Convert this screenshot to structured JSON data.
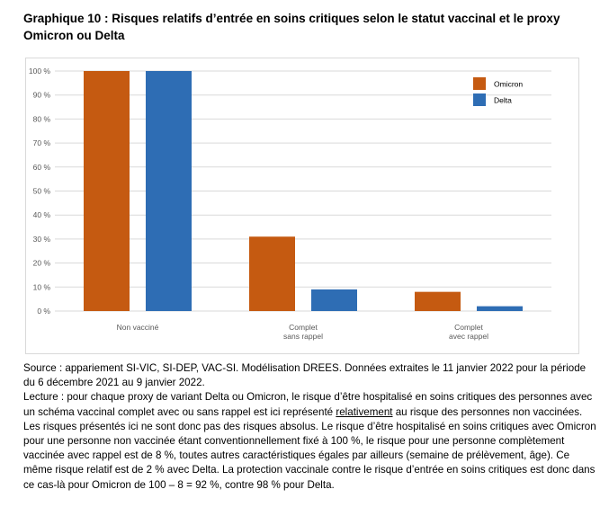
{
  "header": {
    "title": "Graphique 10 : Risques relatifs d’entrée en soins critiques selon le statut vaccinal et le proxy Omicron ou Delta"
  },
  "chart_data": {
    "type": "bar",
    "categories": [
      [
        "Non vacciné"
      ],
      [
        "Complet",
        "sans rappel"
      ],
      [
        "Complet",
        "avec rappel"
      ]
    ],
    "series": [
      {
        "name": "Omicron",
        "color": "#C55A11",
        "values": [
          100,
          31,
          8
        ]
      },
      {
        "name": "Delta",
        "color": "#2E6DB4",
        "values": [
          100,
          9,
          2
        ]
      }
    ],
    "y_ticks": [
      "0 %",
      "10 %",
      "20 %",
      "30 %",
      "40 %",
      "50 %",
      "60 %",
      "70 %",
      "80 %",
      "90 %",
      "100 %"
    ],
    "ylim": [
      0,
      100
    ],
    "grid": true,
    "legend_position": "top-right"
  },
  "notes": {
    "source": "Source : appariement SI-VIC, SI-DEP, VAC-SI. Modélisation DREES. Données extraites le 11 janvier 2022 pour la période du 6 décembre 2021 au 9 janvier 2022.",
    "lecture_1": "Lecture : pour chaque proxy de variant Delta ou Omicron, le risque d’être hospitalisé en soins critiques des personnes avec un schéma vaccinal complet avec ou sans rappel est ici représenté ",
    "lecture_underlined": "relativement",
    "lecture_2": " au risque des personnes non vaccinées. Les risques présentés ici ne sont donc pas des risques absolus. Le risque d’être hospitalisé en soins critiques avec Omicron pour une personne non vaccinée étant conventionnellement fixé à 100 %, le risque pour une personne complètement vaccinée avec rappel est de 8 %, toutes autres caractéristiques égales par ailleurs (semaine de prélèvement, âge). Ce même risque relatif est de 2 % avec Delta. La protection vaccinale contre le risque d’entrée en soins critiques est donc dans ce cas-là pour Omicron de 100 – 8 = 92 %, contre 98 % pour Delta."
  }
}
